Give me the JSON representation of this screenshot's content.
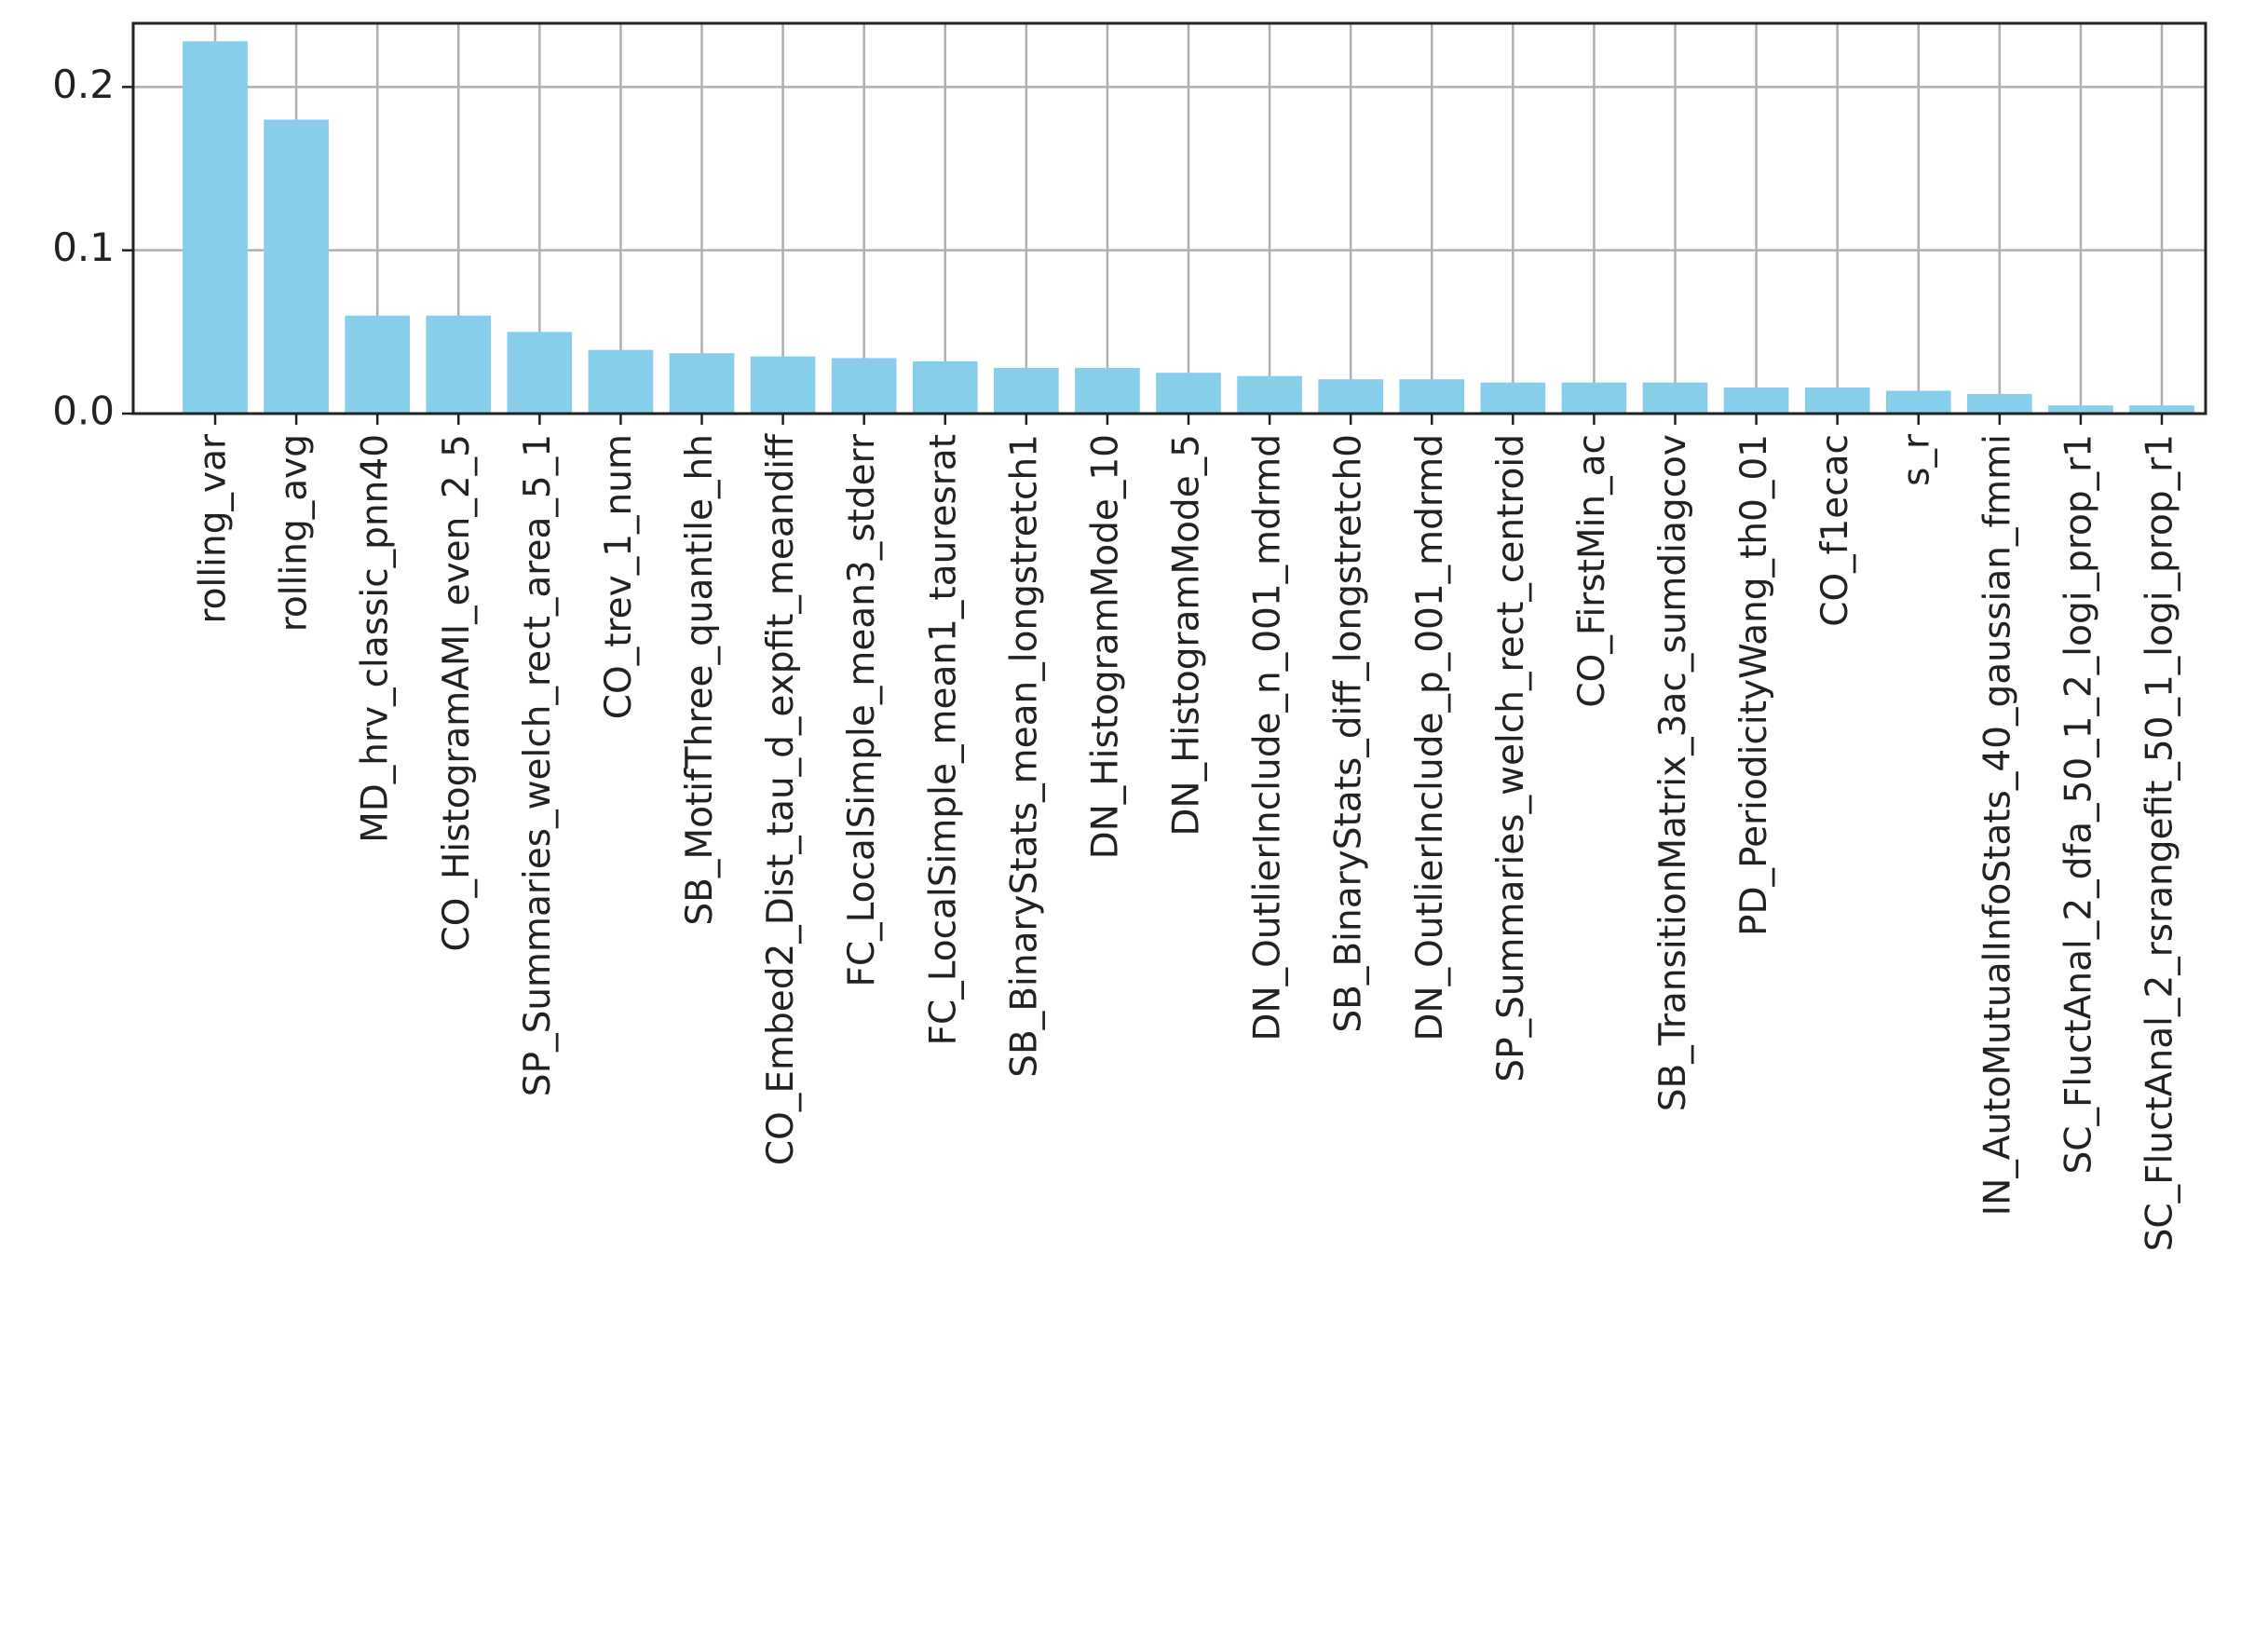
{
  "chart_data": {
    "type": "bar",
    "categories": [
      "rolling_var",
      "rolling_avg",
      "MD_hrv_classic_pnn40",
      "CO_HistogramAMI_even_2_5",
      "SP_Summaries_welch_rect_area_5_1",
      "CO_trev_1_num",
      "SB_MotifThree_quantile_hh",
      "CO_Embed2_Dist_tau_d_expfit_meandiff",
      "FC_LocalSimple_mean3_stderr",
      "FC_LocalSimple_mean1_tauresrat",
      "SB_BinaryStats_mean_longstretch1",
      "DN_HistogramMode_10",
      "DN_HistogramMode_5",
      "DN_OutlierInclude_n_001_mdrmd",
      "SB_BinaryStats_diff_longstretch0",
      "DN_OutlierInclude_p_001_mdrmd",
      "SP_Summaries_welch_rect_centroid",
      "CO_FirstMin_ac",
      "SB_TransitionMatrix_3ac_sumdiagcov",
      "PD_PeriodicityWang_th0_01",
      "CO_f1ecac",
      "s_r",
      "IN_AutoMutualInfoStats_40_gaussian_fmmi",
      "SC_FluctAnal_2_dfa_50_1_2_logi_prop_r1",
      "SC_FluctAnal_2_rsrangefit_50_1_logi_prop_r1"
    ],
    "values": [
      0.228,
      0.18,
      0.06,
      0.06,
      0.05,
      0.039,
      0.037,
      0.035,
      0.034,
      0.032,
      0.028,
      0.028,
      0.025,
      0.023,
      0.021,
      0.021,
      0.019,
      0.019,
      0.019,
      0.016,
      0.016,
      0.014,
      0.012,
      0.005,
      0.005
    ],
    "color": "#87ceeb",
    "ylim": [
      0,
      0.239
    ],
    "yticks": [
      {
        "value": 0,
        "label": "0.0"
      },
      0.1,
      0.2
    ],
    "grid": true
  }
}
